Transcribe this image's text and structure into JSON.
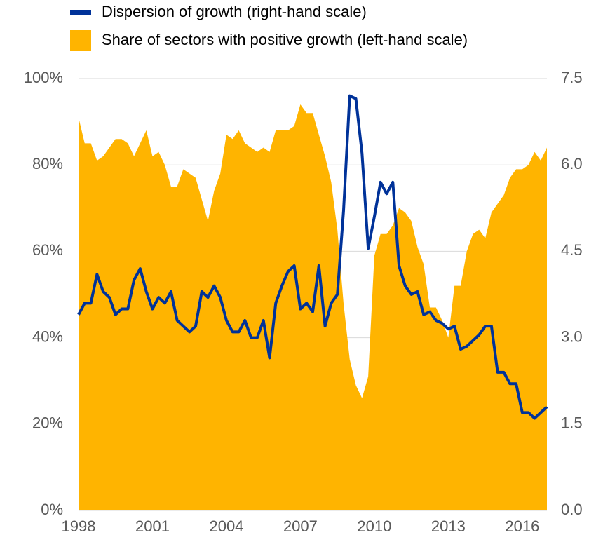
{
  "chart_data": {
    "type": "combo",
    "x": [
      1998,
      1998.25,
      1998.5,
      1998.75,
      1999,
      1999.25,
      1999.5,
      1999.75,
      2000,
      2000.25,
      2000.5,
      2000.75,
      2001,
      2001.25,
      2001.5,
      2001.75,
      2002,
      2002.25,
      2002.5,
      2002.75,
      2003,
      2003.25,
      2003.5,
      2003.75,
      2004,
      2004.25,
      2004.5,
      2004.75,
      2005,
      2005.25,
      2005.5,
      2005.75,
      2006,
      2006.25,
      2006.5,
      2006.75,
      2007,
      2007.25,
      2007.5,
      2007.75,
      2008,
      2008.25,
      2008.5,
      2008.75,
      2009,
      2009.25,
      2009.5,
      2009.75,
      2010,
      2010.25,
      2010.5,
      2010.75,
      2011,
      2011.25,
      2011.5,
      2011.75,
      2012,
      2012.25,
      2012.5,
      2012.75,
      2013,
      2013.25,
      2013.5,
      2013.75,
      2014,
      2014.25,
      2014.5,
      2014.75,
      2015,
      2015.25,
      2015.5,
      2015.75,
      2016,
      2016.25,
      2016.5,
      2016.75,
      2017
    ],
    "series": [
      {
        "name": "Share of sectors with positive growth (left-hand scale)",
        "type": "area",
        "color": "#ffb400",
        "axis": "y",
        "values": [
          91,
          85,
          85,
          81,
          82,
          84,
          86,
          86,
          85,
          82,
          85,
          88,
          82,
          83,
          80,
          75,
          75,
          79,
          78,
          77,
          72,
          67,
          74,
          78,
          87,
          86,
          88,
          85,
          84,
          83,
          84,
          83,
          88,
          88,
          88,
          89,
          94,
          92,
          92,
          87,
          82,
          76,
          65,
          48,
          35,
          29,
          26,
          31,
          59,
          64,
          64,
          66,
          70,
          69,
          67,
          61,
          57,
          47,
          47,
          44,
          40,
          52,
          52,
          60,
          64,
          65,
          63,
          69,
          71,
          73,
          77,
          79,
          79,
          80,
          83,
          81,
          84
        ]
      },
      {
        "name": "Dispersion of growth (right-hand scale)",
        "type": "line",
        "color": "#003299",
        "axis": "y2",
        "values": [
          3.4,
          3.6,
          3.6,
          4.1,
          3.8,
          3.7,
          3.4,
          3.5,
          3.5,
          4.0,
          4.2,
          3.8,
          3.5,
          3.7,
          3.6,
          3.8,
          3.3,
          3.2,
          3.1,
          3.2,
          3.8,
          3.7,
          3.9,
          3.7,
          3.3,
          3.1,
          3.1,
          3.3,
          3.0,
          3.0,
          3.3,
          2.65,
          3.6,
          3.9,
          4.15,
          4.25,
          3.5,
          3.6,
          3.45,
          4.25,
          3.2,
          3.6,
          3.75,
          5.2,
          7.2,
          7.15,
          6.2,
          4.55,
          5.1,
          5.7,
          5.5,
          5.7,
          4.25,
          3.9,
          3.75,
          3.8,
          3.4,
          3.45,
          3.3,
          3.25,
          3.15,
          3.2,
          2.8,
          2.85,
          2.95,
          3.05,
          3.2,
          3.2,
          2.4,
          2.4,
          2.2,
          2.2,
          1.7,
          1.7,
          1.6,
          1.7,
          1.8
        ]
      }
    ],
    "xlim": [
      1998,
      2017
    ],
    "xticks": [
      1998,
      2001,
      2004,
      2007,
      2010,
      2013,
      2016
    ],
    "ylim": [
      0,
      100
    ],
    "yticks": [
      {
        "value": 0,
        "label": "0%"
      },
      {
        "value": 20,
        "label": "20%"
      },
      {
        "value": 40,
        "label": "40%"
      },
      {
        "value": 60,
        "label": "60%"
      },
      {
        "value": 80,
        "label": "80%"
      },
      {
        "value": 100,
        "label": "100%"
      }
    ],
    "y2lim": [
      0,
      7.5
    ],
    "y2ticks": [
      {
        "value": 0,
        "label": "0.0"
      },
      1.5,
      {
        "value": 3,
        "label": "3.0"
      },
      4.5,
      {
        "value": 6,
        "label": "6.0"
      },
      7.5
    ],
    "grid": true
  }
}
